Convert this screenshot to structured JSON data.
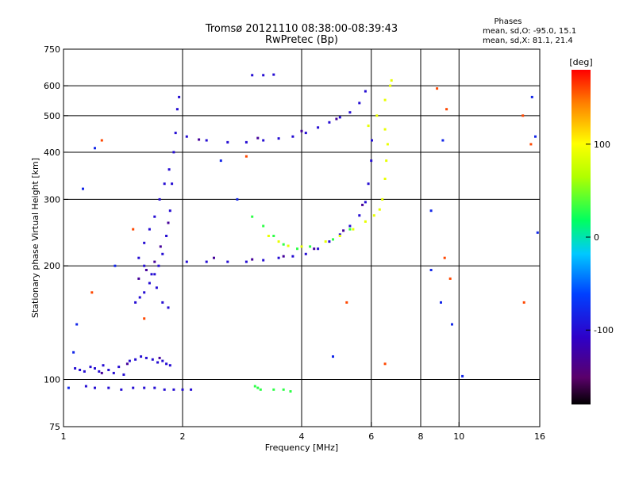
{
  "chart_data": {
    "type": "scatter",
    "title": "Tromsø 20121110 08:38:00-08:39:43",
    "subtitle": "RwPretec (Bp)",
    "xlabel": "Frequency [MHz]",
    "ylabel": "Stationary phase Virtual Height [km]",
    "xscale": "log",
    "yscale": "log",
    "xlim": [
      1,
      16
    ],
    "ylim": [
      75,
      750
    ],
    "x_ticks": [
      1,
      2,
      4,
      6,
      8,
      10,
      16
    ],
    "x_tick_labels": [
      "1",
      "2",
      "4",
      "6",
      "8",
      "10",
      "16"
    ],
    "x_grid": [
      2,
      4,
      6,
      8,
      10
    ],
    "y_ticks": [
      75,
      100,
      200,
      300,
      400,
      500,
      600,
      750
    ],
    "y_tick_labels": [
      "75",
      "100",
      "200",
      "300",
      "400",
      "500",
      "600",
      "750"
    ],
    "y_grid": [
      100,
      200,
      300,
      400,
      500,
      600
    ],
    "grid": true,
    "phase_stats": {
      "title": "Phases",
      "line_o": "mean, sd,O: -95.0, 15.1",
      "line_x": "mean, sd,X:  81.1, 21.4"
    },
    "colorbar": {
      "label": "[deg]",
      "range": [
        -180,
        180
      ],
      "ticks": [
        100,
        0,
        -100
      ],
      "tick_labels": [
        "100",
        "0",
        "-100"
      ],
      "colormap": "rainbow (black → purple → blue → cyan → green → yellow → red)"
    },
    "series": [
      {
        "phase_deg": -100,
        "points": [
          [
            1.07,
            107
          ],
          [
            1.1,
            106
          ],
          [
            1.13,
            105
          ],
          [
            1.17,
            108
          ],
          [
            1.2,
            107
          ],
          [
            1.23,
            105
          ],
          [
            1.26,
            109
          ],
          [
            1.3,
            106
          ],
          [
            1.34,
            104
          ],
          [
            1.38,
            108
          ],
          [
            1.42,
            103
          ],
          [
            1.47,
            112
          ],
          [
            1.52,
            113
          ],
          [
            1.57,
            115
          ],
          [
            1.62,
            114
          ],
          [
            1.68,
            113
          ],
          [
            1.73,
            111
          ],
          [
            1.78,
            112
          ],
          [
            1.82,
            110
          ],
          [
            1.86,
            109
          ],
          [
            1.14,
            96
          ],
          [
            1.2,
            95
          ],
          [
            1.3,
            95
          ],
          [
            1.4,
            94
          ],
          [
            1.5,
            95
          ],
          [
            1.6,
            95
          ],
          [
            1.7,
            95
          ],
          [
            1.8,
            94
          ],
          [
            1.9,
            94
          ],
          [
            2.0,
            94
          ],
          [
            2.1,
            94
          ],
          [
            1.52,
            160
          ],
          [
            1.56,
            165
          ],
          [
            1.6,
            170
          ],
          [
            1.65,
            180
          ],
          [
            1.7,
            190
          ],
          [
            1.74,
            200
          ],
          [
            1.78,
            215
          ],
          [
            1.82,
            240
          ],
          [
            1.86,
            280
          ],
          [
            1.88,
            330
          ],
          [
            1.9,
            400
          ],
          [
            1.92,
            450
          ],
          [
            1.94,
            520
          ],
          [
            1.96,
            560
          ],
          [
            1.55,
            210
          ],
          [
            1.6,
            230
          ],
          [
            1.65,
            250
          ],
          [
            1.7,
            270
          ],
          [
            1.75,
            300
          ],
          [
            1.8,
            330
          ],
          [
            1.85,
            360
          ],
          [
            1.6,
            200
          ],
          [
            1.67,
            190
          ],
          [
            1.72,
            175
          ],
          [
            1.78,
            160
          ],
          [
            1.84,
            155
          ],
          [
            2.05,
            440
          ],
          [
            2.3,
            430
          ],
          [
            2.6,
            425
          ],
          [
            2.9,
            425
          ],
          [
            3.2,
            430
          ],
          [
            3.5,
            435
          ],
          [
            3.8,
            440
          ],
          [
            4.1,
            450
          ],
          [
            4.4,
            465
          ],
          [
            4.7,
            480
          ],
          [
            5.0,
            495
          ],
          [
            5.3,
            510
          ],
          [
            5.6,
            540
          ],
          [
            5.8,
            580
          ],
          [
            2.05,
            205
          ],
          [
            2.3,
            205
          ],
          [
            2.6,
            205
          ],
          [
            2.9,
            205
          ],
          [
            3.2,
            207
          ],
          [
            3.5,
            210
          ],
          [
            3.8,
            212
          ],
          [
            4.1,
            215
          ],
          [
            4.4,
            222
          ],
          [
            4.7,
            232
          ],
          [
            5.0,
            242
          ],
          [
            5.3,
            255
          ],
          [
            5.6,
            272
          ],
          [
            5.8,
            295
          ],
          [
            5.9,
            330
          ],
          [
            6.0,
            380
          ],
          [
            6.02,
            430
          ],
          [
            3.0,
            640
          ],
          [
            3.2,
            640
          ],
          [
            3.4,
            642
          ]
        ]
      },
      {
        "phase_deg": -130,
        "points": [
          [
            1.55,
            185
          ],
          [
            1.62,
            195
          ],
          [
            1.7,
            205
          ],
          [
            1.76,
            225
          ],
          [
            1.84,
            260
          ],
          [
            2.4,
            210
          ],
          [
            3.0,
            208
          ],
          [
            3.6,
            212
          ],
          [
            4.3,
            222
          ],
          [
            5.1,
            248
          ],
          [
            5.7,
            290
          ],
          [
            2.2,
            432
          ],
          [
            3.1,
            436
          ],
          [
            4.0,
            455
          ],
          [
            4.9,
            490
          ],
          [
            1.25,
            104
          ],
          [
            1.45,
            110
          ],
          [
            1.75,
            114
          ]
        ]
      },
      {
        "phase_deg": 30,
        "points": [
          [
            3.05,
            96
          ],
          [
            3.1,
            95
          ],
          [
            3.15,
            94
          ],
          [
            3.4,
            94
          ],
          [
            3.6,
            94
          ],
          [
            3.75,
            93
          ],
          [
            3.0,
            270
          ],
          [
            3.2,
            255
          ],
          [
            3.4,
            240
          ],
          [
            3.6,
            228
          ],
          [
            3.9,
            222
          ],
          [
            4.2,
            225
          ],
          [
            4.8,
            235
          ],
          [
            5.3,
            250
          ]
        ]
      },
      {
        "phase_deg": 90,
        "points": [
          [
            3.3,
            240
          ],
          [
            3.5,
            232
          ],
          [
            3.7,
            226
          ],
          [
            4.0,
            225
          ],
          [
            4.6,
            232
          ],
          [
            5.0,
            240
          ],
          [
            5.4,
            250
          ],
          [
            5.8,
            262
          ],
          [
            6.1,
            272
          ],
          [
            6.3,
            282
          ],
          [
            6.4,
            300
          ],
          [
            6.5,
            340
          ],
          [
            6.55,
            380
          ],
          [
            6.6,
            420
          ],
          [
            6.5,
            460
          ],
          [
            5.9,
            470
          ],
          [
            6.2,
            500
          ],
          [
            6.5,
            550
          ],
          [
            6.7,
            600
          ],
          [
            6.75,
            620
          ]
        ]
      },
      {
        "phase_deg": 160,
        "points": [
          [
            1.25,
            430
          ],
          [
            1.5,
            250
          ],
          [
            1.18,
            170
          ],
          [
            1.6,
            145
          ],
          [
            2.9,
            390
          ],
          [
            5.2,
            160
          ],
          [
            6.5,
            110
          ],
          [
            9.2,
            210
          ],
          [
            14.5,
            500
          ],
          [
            15.2,
            420
          ],
          [
            8.8,
            590
          ],
          [
            9.3,
            520
          ],
          [
            14.6,
            160
          ],
          [
            9.5,
            185
          ]
        ]
      },
      {
        "phase_deg": -80,
        "points": [
          [
            1.03,
            95
          ],
          [
            1.06,
            118
          ],
          [
            1.08,
            140
          ],
          [
            1.12,
            320
          ],
          [
            1.2,
            410
          ],
          [
            1.35,
            200
          ],
          [
            2.5,
            380
          ],
          [
            2.75,
            300
          ],
          [
            8.5,
            280
          ],
          [
            8.5,
            195
          ],
          [
            9.1,
            430
          ],
          [
            15.3,
            560
          ],
          [
            15.6,
            440
          ],
          [
            15.8,
            245
          ],
          [
            9.0,
            160
          ],
          [
            9.6,
            140
          ],
          [
            4.8,
            115
          ],
          [
            10.2,
            102
          ]
        ]
      }
    ]
  }
}
